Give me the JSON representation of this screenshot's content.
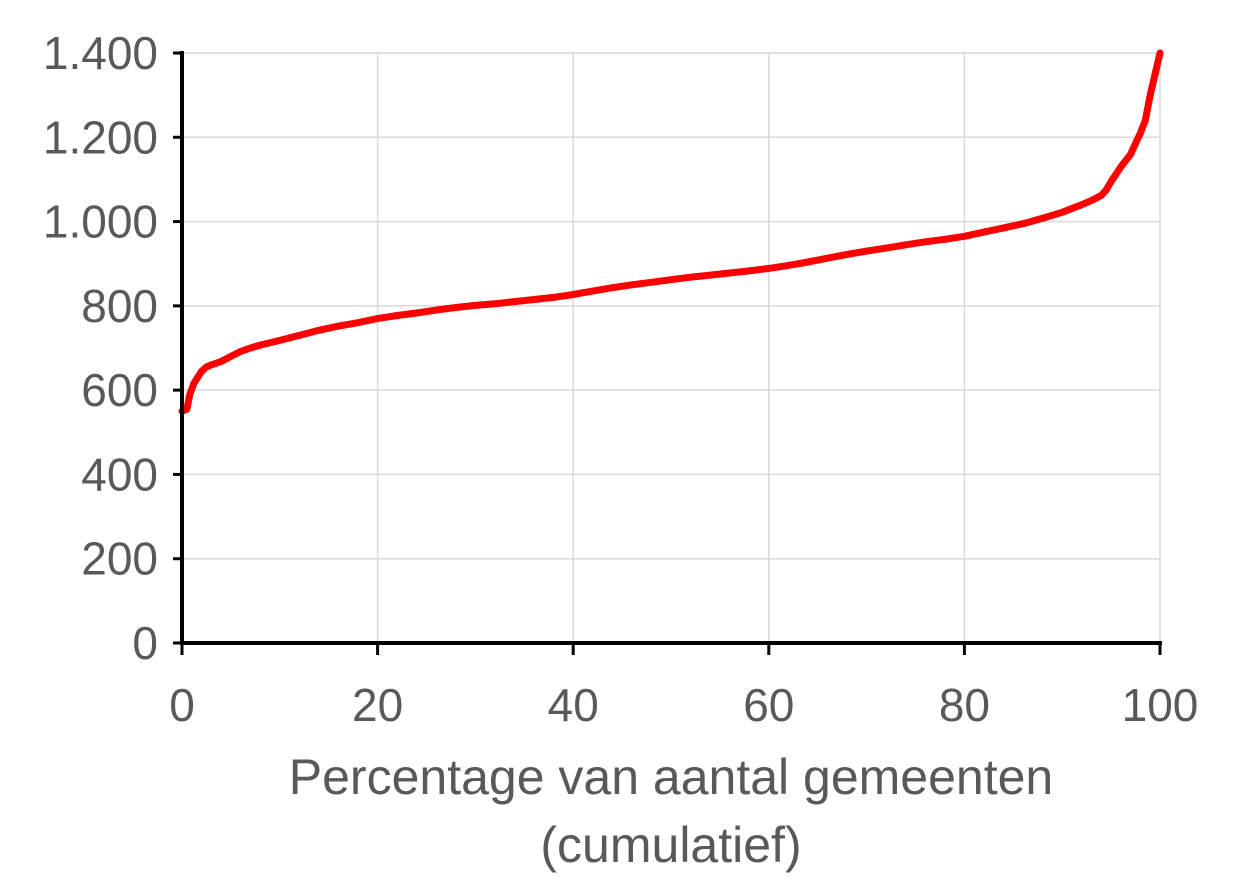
{
  "chart_data": {
    "type": "line",
    "title": "",
    "xlabel_lines": [
      "Percentage van aantal gemeenten",
      "(cumulatief)"
    ],
    "ylabel": "",
    "xlim": [
      0,
      100
    ],
    "ylim": [
      0,
      1400
    ],
    "x_ticks": [
      0,
      20,
      40,
      60,
      80,
      100
    ],
    "x_tick_labels": [
      "0",
      "20",
      "40",
      "60",
      "80",
      "100"
    ],
    "y_ticks": [
      0,
      200,
      400,
      600,
      800,
      1000,
      1200,
      1400
    ],
    "y_tick_labels": [
      "0",
      "200",
      "400",
      "600",
      "800",
      "1.000",
      "1.200",
      "1.400"
    ],
    "grid": true,
    "legend": "none",
    "colors": {
      "series": "#ff0000",
      "grid": "#d9d9d9",
      "axis": "#000000",
      "text": "#595959"
    },
    "series": [
      {
        "x": [
          0,
          0.5,
          0.8,
          1.2,
          1.6,
          2.0,
          2.5,
          3,
          4,
          5,
          6,
          7,
          8,
          10,
          12,
          14,
          16,
          18,
          20,
          22,
          24,
          26,
          28,
          30,
          32,
          34,
          36,
          38,
          40,
          42,
          44,
          46,
          48,
          50,
          52,
          54,
          56,
          58,
          60,
          62,
          64,
          66,
          68,
          70,
          72,
          74,
          76,
          78,
          80,
          82,
          84,
          86,
          88,
          90,
          92,
          93,
          94,
          94.5,
          95,
          96,
          97,
          97.5,
          98,
          98.5,
          99,
          99.5,
          100
        ],
        "y": [
          550,
          555,
          590,
          615,
          630,
          645,
          655,
          660,
          668,
          680,
          692,
          700,
          707,
          718,
          730,
          742,
          752,
          760,
          770,
          777,
          783,
          790,
          796,
          801,
          805,
          810,
          815,
          820,
          827,
          835,
          843,
          850,
          856,
          862,
          868,
          873,
          878,
          883,
          889,
          896,
          904,
          913,
          922,
          930,
          937,
          945,
          952,
          958,
          965,
          975,
          985,
          995,
          1008,
          1022,
          1040,
          1050,
          1062,
          1075,
          1095,
          1130,
          1160,
          1185,
          1210,
          1240,
          1300,
          1350,
          1400
        ]
      }
    ]
  }
}
